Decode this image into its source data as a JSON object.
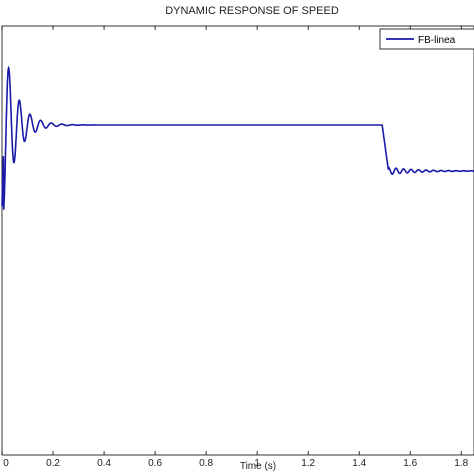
{
  "chart_data": {
    "type": "line",
    "title": "DYNAMIC RESPONSE OF SPEED",
    "xlabel": "Time (s)",
    "ylabel": "",
    "xlim": [
      0,
      1.85
    ],
    "x_ticks": [
      0,
      0.2,
      0.4,
      0.6,
      0.8,
      1,
      1.2,
      1.4,
      1.6,
      1.8
    ],
    "x_tick_labels": [
      "0",
      "0.2",
      "0.4",
      "0.6",
      "0.8",
      "1",
      "1.2",
      "1.4",
      "1.6",
      "1.8"
    ],
    "grid": false,
    "legend": {
      "placement": "top-right",
      "entries": [
        "FB-linea"
      ]
    },
    "series": [
      {
        "name": "FB-linea",
        "color": "#1a1aa8",
        "description_points": [
          [
            0.0,
            0.0
          ],
          [
            0.05,
            1.55
          ],
          [
            0.1,
            1.22
          ],
          [
            0.2,
            1.0
          ],
          [
            0.4,
            1.0
          ],
          [
            1.49,
            1.0
          ],
          [
            1.52,
            0.54
          ],
          [
            1.6,
            0.49
          ],
          [
            1.85,
            0.49
          ]
        ]
      }
    ]
  }
}
